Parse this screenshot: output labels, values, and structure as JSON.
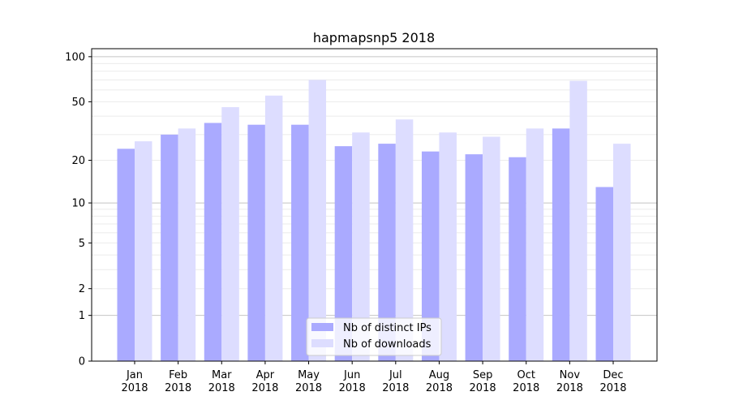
{
  "chart_data": {
    "type": "bar",
    "title": "hapmapsnp5 2018",
    "xlabel": "",
    "ylabel": "",
    "yscale": "log(y+1)",
    "ylim": [
      0,
      113
    ],
    "yticks": [
      0,
      1,
      2,
      5,
      10,
      20,
      50,
      100
    ],
    "grid": true,
    "legend_position": "bottom-center",
    "categories": [
      "Jan\n2018",
      "Feb\n2018",
      "Mar\n2018",
      "Apr\n2018",
      "May\n2018",
      "Jun\n2018",
      "Jul\n2018",
      "Aug\n2018",
      "Sep\n2018",
      "Oct\n2018",
      "Nov\n2018",
      "Dec\n2018"
    ],
    "series": [
      {
        "name": "Nb of distinct IPs",
        "color": "#aaaaff",
        "values": [
          24,
          30,
          36,
          35,
          35,
          25,
          26,
          23,
          22,
          21,
          33,
          13
        ]
      },
      {
        "name": "Nb of downloads",
        "color": "#ddddff",
        "values": [
          27,
          33,
          46,
          55,
          70,
          31,
          38,
          31,
          29,
          33,
          69,
          26
        ]
      }
    ]
  }
}
